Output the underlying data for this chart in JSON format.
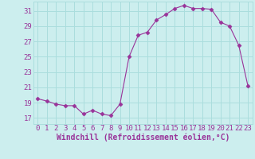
{
  "x": [
    0,
    1,
    2,
    3,
    4,
    5,
    6,
    7,
    8,
    9,
    10,
    11,
    12,
    13,
    14,
    15,
    16,
    17,
    18,
    19,
    20,
    21,
    22,
    23
  ],
  "y": [
    19.5,
    19.2,
    18.8,
    18.6,
    18.6,
    17.5,
    18.0,
    17.5,
    17.3,
    18.8,
    25.0,
    27.8,
    28.2,
    29.8,
    30.5,
    31.3,
    31.7,
    31.3,
    31.3,
    31.2,
    29.5,
    29.0,
    26.5,
    21.2
  ],
  "line_color": "#993399",
  "marker": "D",
  "marker_size": 2.5,
  "bg_color": "#cceeee",
  "grid_color": "#aadddd",
  "xlabel": "Windchill (Refroidissement éolien,°C)",
  "xlabel_color": "#993399",
  "xlabel_fontsize": 7,
  "ylabel_ticks": [
    17,
    19,
    21,
    23,
    25,
    27,
    29,
    31
  ],
  "ylim": [
    16.2,
    32.2
  ],
  "xlim": [
    -0.5,
    23.5
  ],
  "tick_color": "#993399",
  "tick_fontsize": 6.5
}
